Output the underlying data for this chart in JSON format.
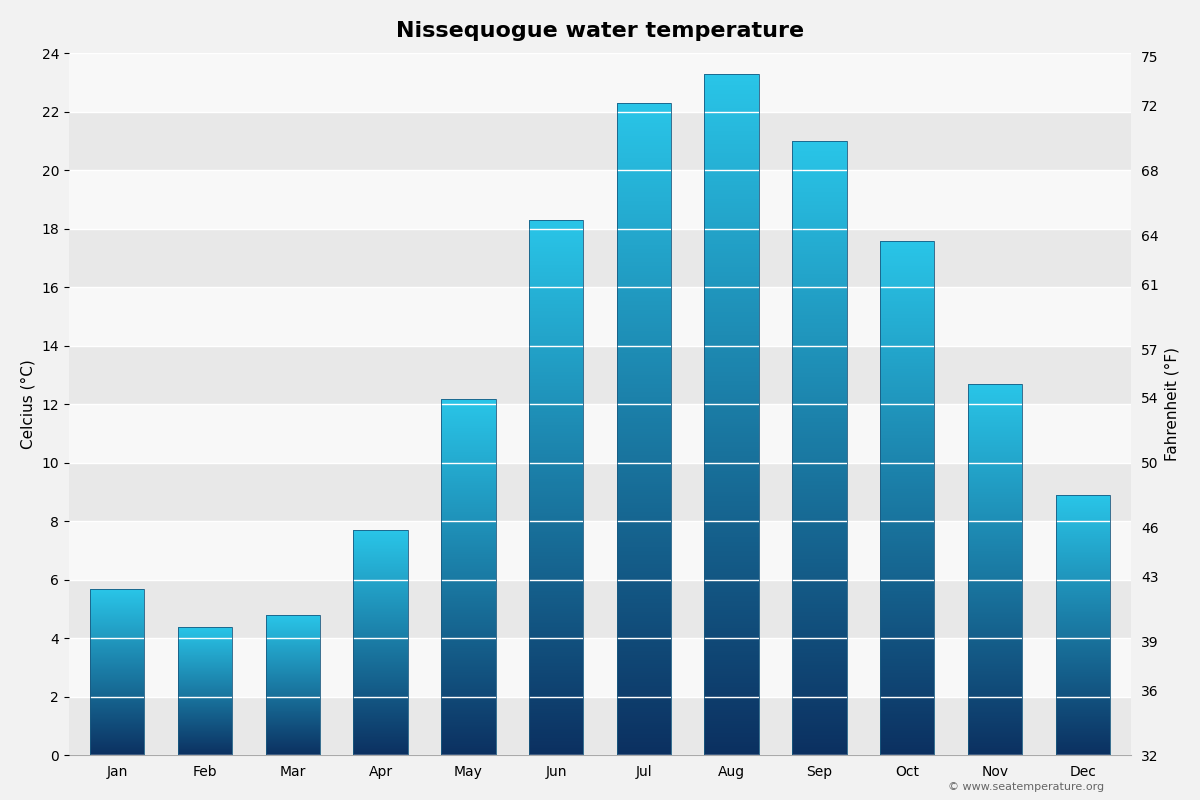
{
  "title": "Nissequogue water temperature",
  "months": [
    "Jan",
    "Feb",
    "Mar",
    "Apr",
    "May",
    "Jun",
    "Jul",
    "Aug",
    "Sep",
    "Oct",
    "Nov",
    "Dec"
  ],
  "celsius_values": [
    5.7,
    4.4,
    4.8,
    7.7,
    12.2,
    18.3,
    22.3,
    23.3,
    21.0,
    17.6,
    12.7,
    8.9
  ],
  "ylabel_left": "Celcius (°C)",
  "ylabel_right": "Fahrenheit (°F)",
  "ylim_celsius": [
    0,
    24
  ],
  "yticks_celsius": [
    0,
    2,
    4,
    6,
    8,
    10,
    12,
    14,
    16,
    18,
    20,
    22,
    24
  ],
  "yticks_fahrenheit": [
    32,
    36,
    39,
    43,
    46,
    50,
    54,
    57,
    61,
    64,
    68,
    72,
    75
  ],
  "background_color": "#f2f2f2",
  "plot_bg_color": "#f2f2f2",
  "band_color_dark": "#e8e8e8",
  "band_color_light": "#f8f8f8",
  "grid_color": "#cccccc",
  "bar_top_color": "#29c5e8",
  "bar_bottom_color": "#0b3060",
  "bar_edge_color": "#1a5a80",
  "copyright_text": "© www.seatemperature.org",
  "title_fontsize": 16,
  "axis_label_fontsize": 11,
  "tick_fontsize": 10,
  "bar_width": 0.62
}
